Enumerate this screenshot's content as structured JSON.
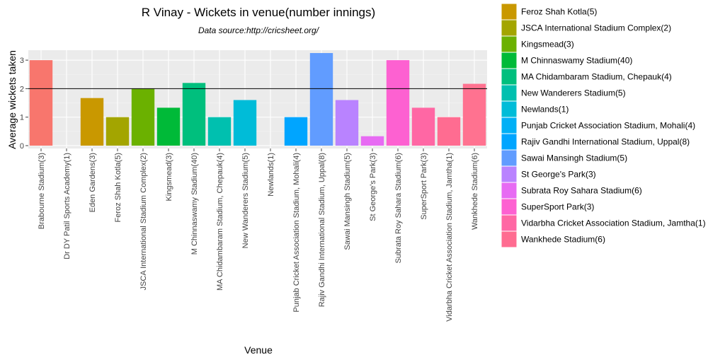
{
  "chart_data": {
    "type": "bar",
    "title": "R Vinay - Wickets in venue(number innings)",
    "subtitle": "Data source:http://cricsheet.org/",
    "xlabel": "Venue",
    "ylabel": "Average wickets taken",
    "ylim": [
      -0.1,
      3.35
    ],
    "yticks": [
      0,
      1,
      2,
      3
    ],
    "reference_line": 2,
    "categories": [
      "Brabourne Stadium(3)",
      "Dr DY Patil Sports Academy(1)",
      "Eden Gardens(3)",
      "Feroz Shah Kotla(5)",
      "JSCA International Stadium Complex(2)",
      "Kingsmead(3)",
      "M Chinnaswamy Stadium(40)",
      "MA Chidambaram Stadium, Chepauk(4)",
      "New Wanderers Stadium(5)",
      "Newlands(1)",
      "Punjab Cricket Association Stadium, Mohali(4)",
      "Rajiv Gandhi International Stadium, Uppal(8)",
      "Sawai Mansingh Stadium(5)",
      "St George's Park(3)",
      "Subrata Roy Sahara Stadium(6)",
      "SuperSport Park(3)",
      "Vidarbha Cricket Association Stadium, Jamtha(1)",
      "Wankhede Stadium(6)"
    ],
    "values": [
      3,
      0,
      1.67,
      1,
      2,
      1.33,
      2.2,
      1,
      1.6,
      0,
      1,
      3.25,
      1.6,
      0.33,
      3,
      1.33,
      1,
      2.17
    ],
    "colors": [
      "#F8766D",
      "#E58700",
      "#C99800",
      "#A3A500",
      "#6BB100",
      "#00BA38",
      "#00BF7D",
      "#00C0AF",
      "#00BCD8",
      "#00B0F6",
      "#00A5FF",
      "#619CFF",
      "#B983FF",
      "#E76BF3",
      "#FD61D1",
      "#FF67A4",
      "#FF6C91",
      "#FF7290"
    ],
    "legend": {
      "position": "right",
      "entries": [
        "Feroz Shah Kotla(5)",
        "JSCA International Stadium Complex(2)",
        "Kingsmead(3)",
        "M Chinnaswamy Stadium(40)",
        "MA Chidambaram Stadium, Chepauk(4)",
        "New Wanderers Stadium(5)",
        "Newlands(1)",
        "Punjab Cricket Association Stadium, Mohali(4)",
        "Rajiv Gandhi International Stadium, Uppal(8)",
        "Sawai Mansingh Stadium(5)",
        "St George's Park(3)",
        "Subrata Roy Sahara Stadium(6)",
        "SuperSport Park(3)",
        "Vidarbha Cricket Association Stadium, Jamtha(1)",
        "Wankhede Stadium(6)"
      ],
      "colors": [
        "#C99800",
        "#A3A500",
        "#6BB100",
        "#00BA38",
        "#00BF7D",
        "#00C0AF",
        "#00BCD8",
        "#00B0F6",
        "#00A5FF",
        "#619CFF",
        "#B983FF",
        "#E76BF3",
        "#FD61D1",
        "#FF67A4",
        "#FF6C91"
      ],
      "clipped_top_color": "#E58700"
    },
    "grid": true,
    "panel_color": "#EBEBEB"
  }
}
